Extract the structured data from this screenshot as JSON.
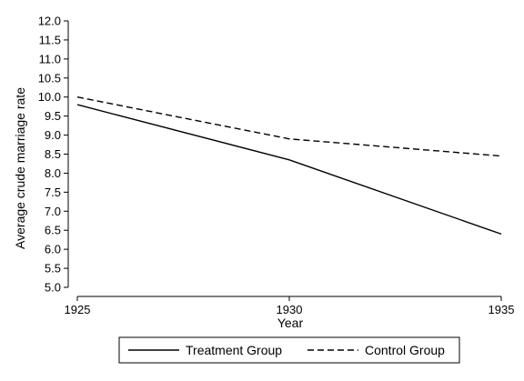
{
  "chart_data": {
    "type": "line",
    "x": [
      1925,
      1930,
      1935
    ],
    "xlabel": "Year",
    "ylabel": "Average crude marriage rate",
    "xlim": [
      1925,
      1935
    ],
    "ylim": [
      5.0,
      12.0
    ],
    "x_ticks": [
      "1925",
      "1930",
      "1935"
    ],
    "y_ticks": [
      "5.0",
      "5.5",
      "6.0",
      "6.5",
      "7.0",
      "7.5",
      "8.0",
      "8.5",
      "9.0",
      "9.5",
      "10.0",
      "10.5",
      "11.0",
      "11.5",
      "12.0"
    ],
    "grid": false,
    "legend_position": "bottom",
    "series": [
      {
        "name": "Treatment Group",
        "values": [
          9.8,
          8.35,
          6.4
        ],
        "style": "solid",
        "color": "#000000"
      },
      {
        "name": "Control Group",
        "values": [
          10.0,
          8.9,
          8.45
        ],
        "style": "dashed",
        "color": "#000000"
      }
    ]
  }
}
